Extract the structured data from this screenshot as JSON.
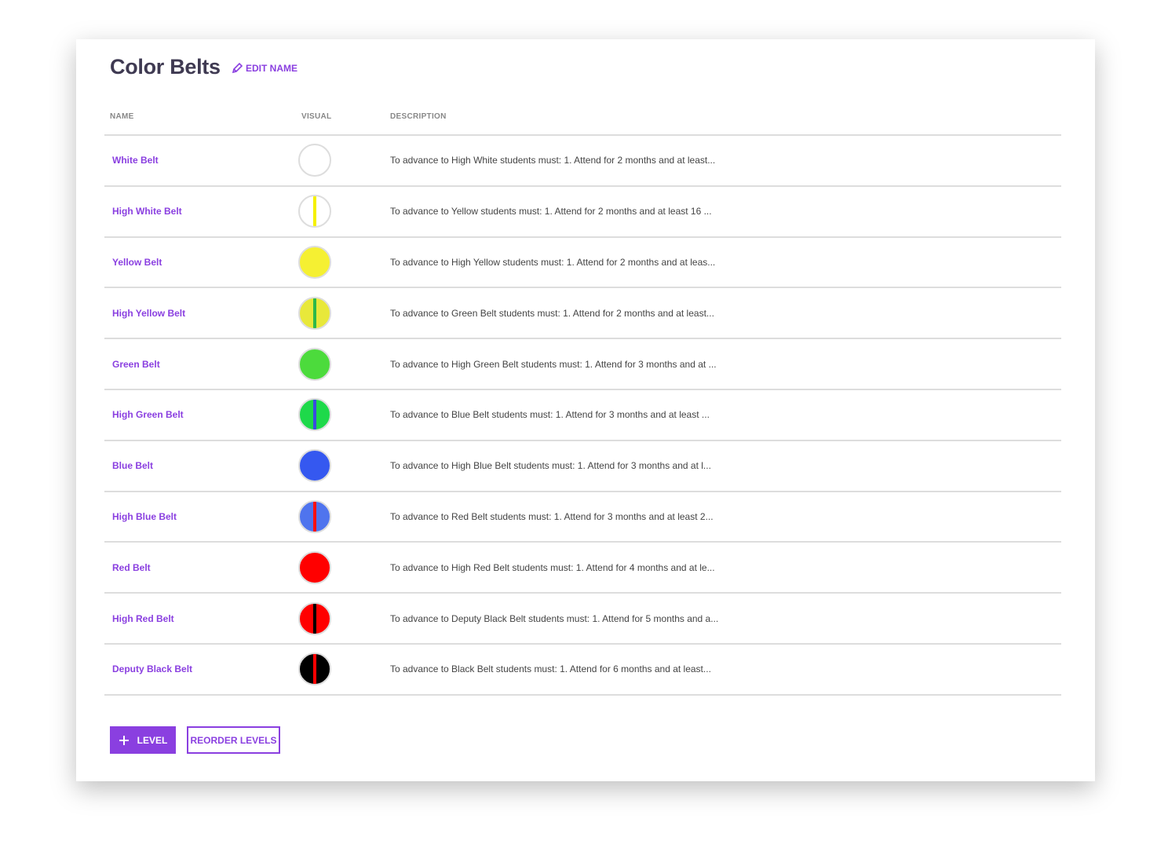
{
  "title": "Color Belts",
  "edit_name": "EDIT NAME",
  "headers": {
    "name": "NAME",
    "visual": "VISUAL",
    "description": "DESCRIPTION"
  },
  "accent": "#8a3fe0",
  "belts": [
    {
      "name": "White Belt",
      "color": "#ffffff",
      "stripe": null,
      "description": "To advance to High White students must: 1. Attend for 2 months and at least..."
    },
    {
      "name": "High White Belt",
      "color": "#ffffff",
      "stripe": "#f5f000",
      "description": "To advance to Yellow students must: 1. Attend for 2 months and at least 16 ..."
    },
    {
      "name": "Yellow Belt",
      "color": "#f5f032",
      "stripe": null,
      "description": "To advance to High Yellow students must: 1. Attend for 2 months and at leas..."
    },
    {
      "name": "High Yellow Belt",
      "color": "#e8e83a",
      "stripe": "#2db84a",
      "description": "To advance to Green Belt students must: 1. Attend for 2 months and at least..."
    },
    {
      "name": "Green Belt",
      "color": "#4cdb3c",
      "stripe": null,
      "description": "To advance to High Green Belt students must: 1. Attend for 3 months and at ..."
    },
    {
      "name": "High Green Belt",
      "color": "#1ed94a",
      "stripe": "#3a4be0",
      "description": "To advance to Blue Belt students must: 1. Attend for 3 months and at least ..."
    },
    {
      "name": "Blue Belt",
      "color": "#3558f0",
      "stripe": null,
      "description": "To advance to High Blue Belt students must: 1. Attend for 3 months and at l..."
    },
    {
      "name": "High Blue Belt",
      "color": "#4f74ee",
      "stripe": "#ff1010",
      "description": "To advance to Red Belt students must: 1. Attend for 3 months and at least 2..."
    },
    {
      "name": "Red Belt",
      "color": "#ff0000",
      "stripe": null,
      "description": "To advance to High Red Belt students must: 1. Attend for 4 months and at le..."
    },
    {
      "name": "High Red Belt",
      "color": "#ff0000",
      "stripe": "#000000",
      "description": "To advance to Deputy Black Belt students must: 1. Attend for 5 months and a..."
    },
    {
      "name": "Deputy Black Belt",
      "color": "#000000",
      "stripe": "#ff0000",
      "description": "To advance to Black Belt students must: 1. Attend for 6 months and at least..."
    }
  ],
  "buttons": {
    "add_level": "LEVEL",
    "reorder": "REORDER LEVELS"
  }
}
